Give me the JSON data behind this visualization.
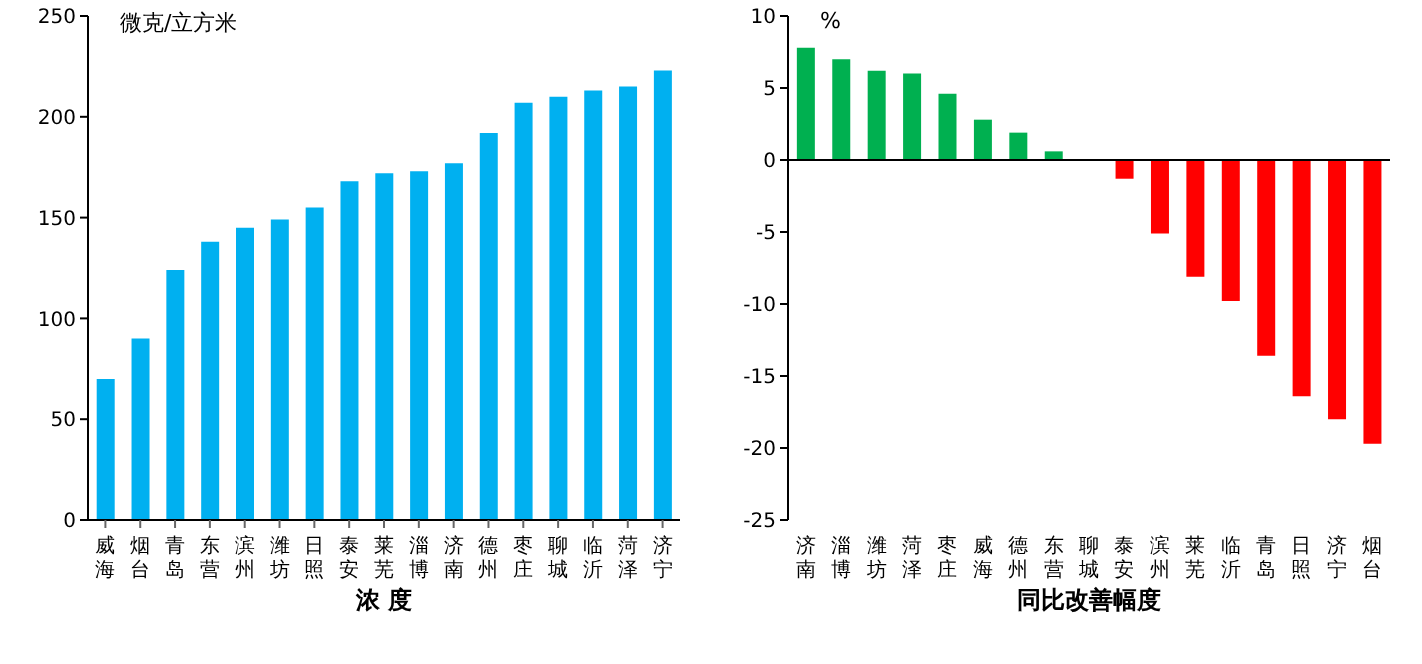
{
  "chart_data": [
    {
      "type": "bar",
      "xlabel": "浓 度",
      "ylabel": "微克/立方米",
      "categories": [
        "威海",
        "烟台",
        "青岛",
        "东营",
        "滨州",
        "潍坊",
        "日照",
        "泰安",
        "莱芜",
        "淄博",
        "济南",
        "德州",
        "枣庄",
        "聊城",
        "临沂",
        "菏泽",
        "济宁"
      ],
      "values": [
        70,
        90,
        124,
        138,
        145,
        149,
        155,
        168,
        172,
        173,
        177,
        192,
        207,
        210,
        213,
        215,
        223
      ],
      "color": "#00b0f0",
      "ylim": [
        0,
        250
      ],
      "yticks": [
        0,
        50,
        100,
        150,
        200,
        250
      ],
      "grid": false,
      "legend": false
    },
    {
      "type": "bar",
      "xlabel": "同比改善幅度",
      "ylabel": "%",
      "categories": [
        "济南",
        "淄博",
        "潍坊",
        "菏泽",
        "枣庄",
        "威海",
        "德州",
        "东营",
        "聊城",
        "泰安",
        "滨州",
        "莱芜",
        "临沂",
        "青岛",
        "日照",
        "济宁",
        "烟台"
      ],
      "values": [
        7.8,
        7.0,
        6.2,
        6.0,
        4.6,
        2.8,
        1.9,
        0.6,
        0,
        -1.3,
        -5.1,
        -8.1,
        -9.8,
        -13.6,
        -16.4,
        -18.0,
        -19.7
      ],
      "colors": [
        "#00b050",
        "#00b050",
        "#00b050",
        "#00b050",
        "#00b050",
        "#00b050",
        "#00b050",
        "#00b050",
        "#00b050",
        "#ff0000",
        "#ff0000",
        "#ff0000",
        "#ff0000",
        "#ff0000",
        "#ff0000",
        "#ff0000",
        "#ff0000"
      ],
      "ylim": [
        -25,
        10
      ],
      "yticks": [
        -25,
        -20,
        -15,
        -10,
        -5,
        0,
        5,
        10
      ],
      "ref_lines": [
        {
          "axis": "y",
          "value": 0,
          "color": "#000000"
        }
      ],
      "grid": false,
      "legend": false
    }
  ]
}
